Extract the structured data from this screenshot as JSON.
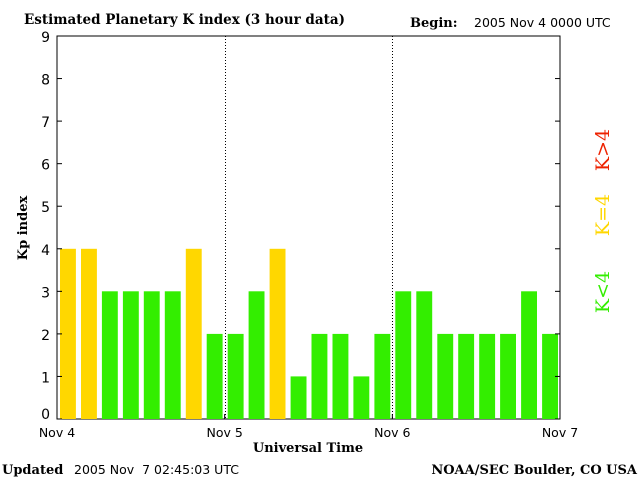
{
  "header": {
    "title": "Estimated Planetary K index (3 hour data)",
    "begin_label": "Begin:",
    "begin_value": "2005 Nov 4 0000 UTC"
  },
  "footer": {
    "updated_label": "Updated",
    "updated_value": "2005 Nov  7 02:45:03 UTC",
    "source": "NOAA/SEC Boulder, CO USA"
  },
  "legend": {
    "high": "K>4",
    "mid": "K=4",
    "low": "K<4"
  },
  "colors": {
    "low": "#33ee00",
    "mid": "#ffd700",
    "high": "#ee2200",
    "axis": "#000000",
    "background": "#ffffff"
  },
  "chart_data": {
    "type": "bar",
    "title": "Estimated Planetary K index (3 hour data)",
    "xlabel": "Universal Time",
    "ylabel": "Kp index",
    "ylim": [
      0,
      9
    ],
    "yticks": [
      0,
      1,
      2,
      3,
      4,
      5,
      6,
      7,
      8,
      9
    ],
    "xlim_days": [
      0,
      3
    ],
    "xtick_labels": [
      "Nov 4",
      "Nov 5",
      "Nov 6",
      "Nov 7"
    ],
    "day_separators": [
      1,
      2
    ],
    "interval_hours": 3,
    "values": [
      4,
      4,
      3,
      3,
      3,
      3,
      4,
      2,
      2,
      3,
      4,
      1,
      2,
      2,
      1,
      2,
      3,
      3,
      2,
      2,
      2,
      2,
      3,
      2
    ],
    "color_rule": "K<4 green, K=4 yellow, K>4 red"
  }
}
